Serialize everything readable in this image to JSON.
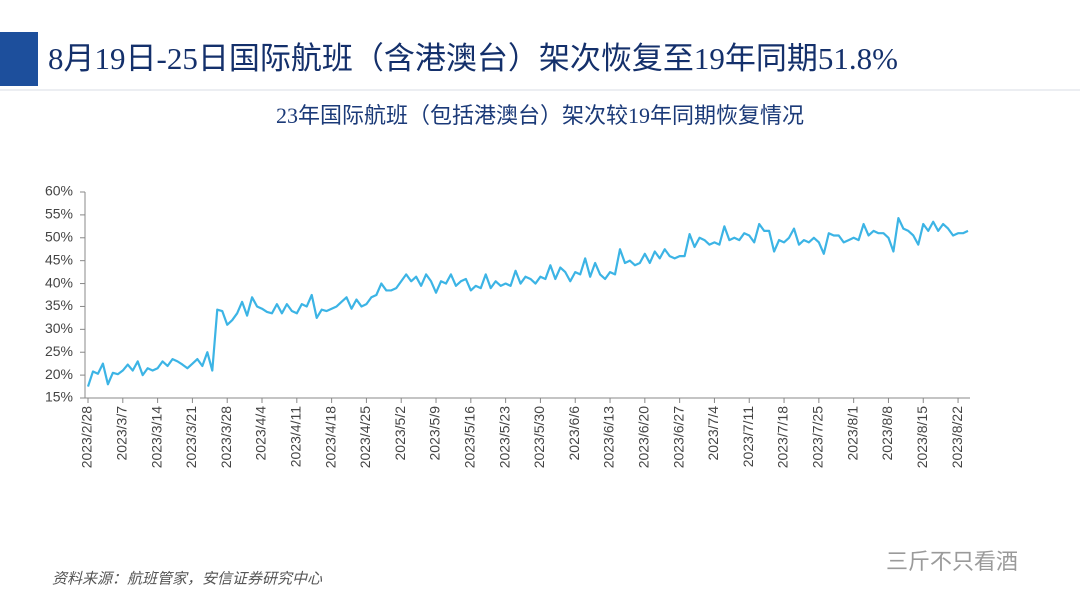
{
  "header": {
    "title": "8月19日-25日国际航班（含港澳台）架次恢复至19年同期51.8%"
  },
  "chart_data": {
    "type": "line",
    "title": "23年国际航班（包括港澳台）架次较19年同期恢复情况",
    "source": "资料来源：航班管家，安信证券研究中心",
    "color": "#3cb4e5",
    "categories": [
      "2023/2/28",
      null,
      null,
      null,
      null,
      null,
      null,
      "2023/3/7",
      null,
      null,
      null,
      null,
      null,
      null,
      "2023/3/14",
      null,
      null,
      null,
      null,
      null,
      null,
      "2023/3/21",
      null,
      null,
      null,
      null,
      null,
      null,
      "2023/3/28",
      null,
      null,
      null,
      null,
      null,
      null,
      "2023/4/4",
      null,
      null,
      null,
      null,
      null,
      null,
      "2023/4/11",
      null,
      null,
      null,
      null,
      null,
      null,
      "2023/4/18",
      null,
      null,
      null,
      null,
      null,
      null,
      "2023/4/25",
      null,
      null,
      null,
      null,
      null,
      null,
      "2023/5/2",
      null,
      null,
      null,
      null,
      null,
      null,
      "2023/5/9",
      null,
      null,
      null,
      null,
      null,
      null,
      "2023/5/16",
      null,
      null,
      null,
      null,
      null,
      null,
      "2023/5/23",
      null,
      null,
      null,
      null,
      null,
      null,
      "2023/5/30",
      null,
      null,
      null,
      null,
      null,
      null,
      "2023/6/6",
      null,
      null,
      null,
      null,
      null,
      null,
      "2023/6/13",
      null,
      null,
      null,
      null,
      null,
      null,
      "2023/6/20",
      null,
      null,
      null,
      null,
      null,
      null,
      "2023/6/27",
      null,
      null,
      null,
      null,
      null,
      null,
      "2023/7/4",
      null,
      null,
      null,
      null,
      null,
      null,
      "2023/7/11",
      null,
      null,
      null,
      null,
      null,
      null,
      "2023/7/18",
      null,
      null,
      null,
      null,
      null,
      null,
      "2023/7/25",
      null,
      null,
      null,
      null,
      null,
      null,
      "2023/8/1",
      null,
      null,
      null,
      null,
      null,
      null,
      "2023/8/8",
      null,
      null,
      null,
      null,
      null,
      null,
      "2023/8/15",
      null,
      null,
      null,
      null,
      null,
      null,
      "2023/8/22",
      null,
      null
    ],
    "values": [
      17.5,
      20.8,
      20.3,
      22.5,
      18.0,
      20.5,
      20.2,
      21.0,
      22.3,
      21.0,
      23.0,
      20.0,
      21.5,
      21.0,
      21.5,
      23.0,
      22.0,
      23.5,
      23.0,
      22.3,
      21.5,
      22.5,
      23.5,
      22.0,
      25.0,
      21.0,
      34.3,
      34.0,
      31.0,
      32.0,
      33.5,
      36.0,
      33.0,
      37.0,
      35.0,
      34.5,
      33.8,
      33.5,
      35.5,
      33.5,
      35.5,
      34.0,
      33.5,
      35.5,
      35.0,
      37.5,
      32.5,
      34.3,
      34.0,
      34.5,
      35.0,
      36.0,
      37.0,
      34.5,
      36.5,
      35.0,
      35.5,
      37.0,
      37.5,
      40.0,
      38.5,
      38.5,
      39.0,
      40.5,
      42.0,
      40.5,
      41.5,
      39.5,
      42.0,
      40.5,
      38.0,
      40.5,
      40.0,
      42.0,
      39.5,
      40.5,
      41.0,
      38.5,
      39.5,
      39.0,
      42.0,
      39.0,
      40.5,
      39.5,
      40.0,
      39.5,
      42.8,
      40.0,
      41.5,
      41.0,
      40.0,
      41.5,
      41.0,
      44.0,
      41.0,
      43.5,
      42.5,
      40.5,
      42.5,
      42.0,
      45.5,
      41.5,
      44.5,
      42.0,
      41.0,
      42.5,
      42.0,
      47.5,
      44.5,
      45.0,
      44.0,
      44.5,
      46.5,
      44.5,
      47.0,
      45.5,
      47.5,
      46.0,
      45.5,
      46.0,
      46.0,
      50.8,
      48.0,
      50.0,
      49.5,
      48.5,
      49.0,
      48.5,
      52.5,
      49.5,
      50.0,
      49.5,
      51.0,
      50.5,
      49.0,
      53.0,
      51.5,
      51.5,
      47.0,
      49.5,
      49.0,
      50.0,
      52.0,
      48.5,
      49.5,
      49.0,
      50.0,
      49.0,
      46.5,
      51.0,
      50.5,
      50.5,
      49.0,
      49.5,
      50.0,
      49.5,
      53.0,
      50.5,
      51.5,
      51.0,
      51.0,
      50.0,
      47.0,
      54.3,
      52.0,
      51.5,
      50.5,
      48.5,
      53.0,
      51.5,
      53.5,
      51.5,
      53.0,
      52.0,
      50.5,
      51.0,
      51.0,
      51.5
    ],
    "ylim": [
      15,
      60
    ],
    "yticks": [
      {
        "value": 15,
        "label": "15%"
      },
      {
        "value": 20,
        "label": "20%"
      },
      {
        "value": 25,
        "label": "25%"
      },
      {
        "value": 30,
        "label": "30%"
      },
      {
        "value": 35,
        "label": "35%"
      },
      {
        "value": 40,
        "label": "40%"
      },
      {
        "value": 45,
        "label": "45%"
      },
      {
        "value": 50,
        "label": "50%"
      },
      {
        "value": 55,
        "label": "55%"
      },
      {
        "value": 60,
        "label": "60%"
      }
    ]
  },
  "watermark": "三斤不只看酒"
}
